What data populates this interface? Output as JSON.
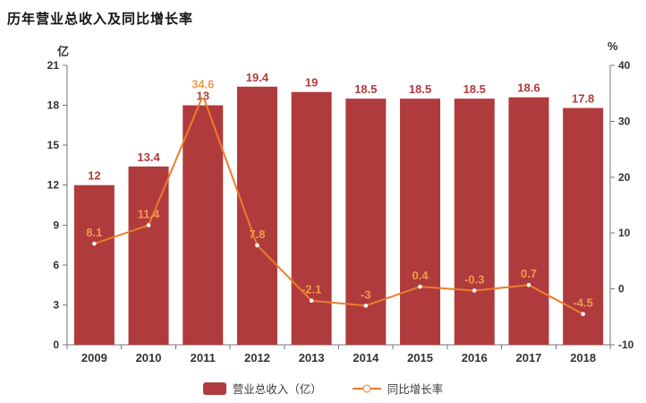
{
  "title": "历年营业总收入及同比增长率",
  "axes": {
    "left_unit": "亿",
    "right_unit": "%"
  },
  "legend": {
    "bar_label": "营业总收入（亿）",
    "line_label": "同比增长率"
  },
  "colors": {
    "bar": "#af3b3c",
    "bar_label": "#b23b3c",
    "line": "#ea7d2c",
    "line_label": "#f09a4c",
    "marker_fill": "#ffffff",
    "axis": "#757575",
    "tick_text": "#333333"
  },
  "chart_data": {
    "type": "bar",
    "subtype": "bar-line-combo",
    "title": "历年营业总收入及同比增长率",
    "categories": [
      "2009",
      "2010",
      "2011",
      "2012",
      "2013",
      "2014",
      "2015",
      "2016",
      "2017",
      "2018"
    ],
    "series": [
      {
        "name": "营业总收入（亿）",
        "type": "bar",
        "axis": "left",
        "values": [
          12,
          13.4,
          18,
          19.4,
          19,
          18.5,
          18.5,
          18.5,
          18.6,
          17.8
        ]
      },
      {
        "name": "同比增长率",
        "type": "line",
        "axis": "right",
        "values": [
          8.1,
          11.4,
          34.6,
          7.8,
          -2.1,
          -3,
          0.4,
          -0.3,
          0.7,
          -4.5
        ]
      }
    ],
    "left_axis": {
      "label": "亿",
      "min": 0,
      "max": 21,
      "step": 3
    },
    "right_axis": {
      "label": "%",
      "min": -10,
      "max": 40,
      "step": 10
    },
    "grid": false,
    "legend_position": "bottom"
  }
}
